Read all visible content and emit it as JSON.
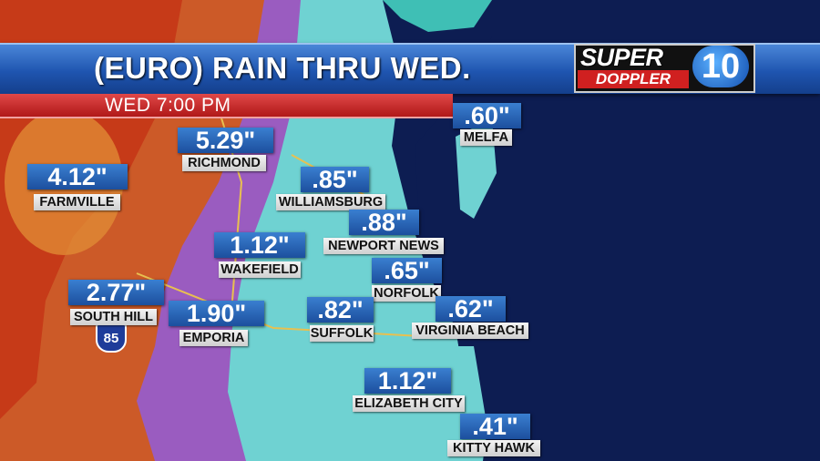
{
  "header": {
    "title": "(EURO) RAIN THRU WED.",
    "time": "WED 7:00 PM"
  },
  "logo": {
    "line1": "SUPER",
    "line2": "DOPPLER",
    "number": "10"
  },
  "shield": "85",
  "locations": [
    {
      "name": "MELFA",
      "amount": ".60\""
    },
    {
      "name": "RICHMOND",
      "amount": "5.29\""
    },
    {
      "name": "FARMVILLE",
      "amount": "4.12\""
    },
    {
      "name": "WILLIAMSBURG",
      "amount": ".85\""
    },
    {
      "name": "NEWPORT NEWS",
      "amount": ".88\""
    },
    {
      "name": "WAKEFIELD",
      "amount": "1.12\""
    },
    {
      "name": "NORFOLK",
      "amount": ".65\""
    },
    {
      "name": "SOUTH HILL",
      "amount": "2.77\""
    },
    {
      "name": "EMPORIA",
      "amount": "1.90\""
    },
    {
      "name": "SUFFOLK",
      "amount": ".82\""
    },
    {
      "name": "VIRGINIA BEACH",
      "amount": ".62\""
    },
    {
      "name": "ELIZABETH CITY",
      "amount": "1.12\""
    },
    {
      "name": "KITTY HAWK",
      "amount": ".41\""
    }
  ]
}
